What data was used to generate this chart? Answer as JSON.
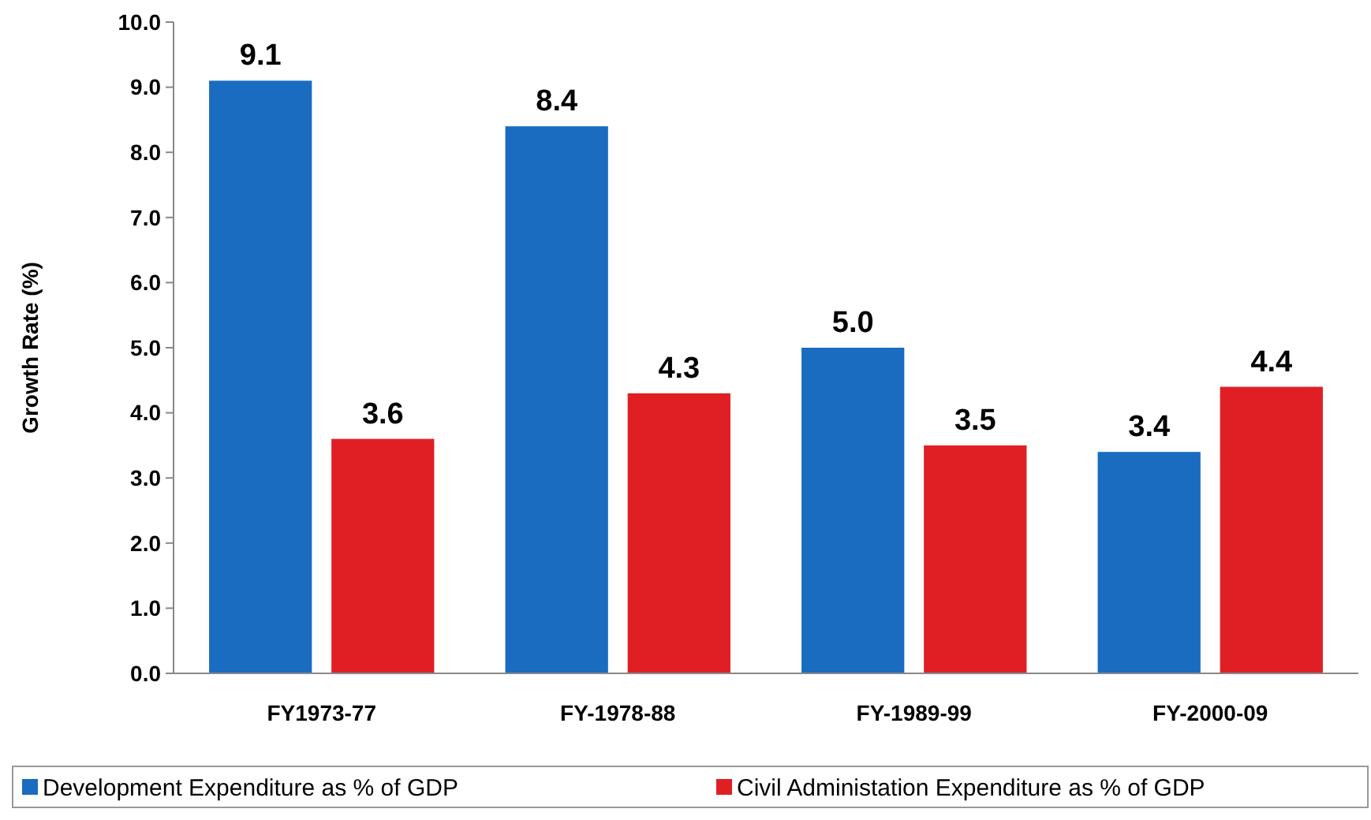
{
  "chart_data": {
    "type": "bar",
    "ylabel": "Growth Rate (%)",
    "categories": [
      "FY1973-77",
      "FY-1978-88",
      "FY-1989-99",
      "FY-2000-09"
    ],
    "series": [
      {
        "name": "Development Expenditure as % of GDP",
        "color": "#1a6cc0",
        "values": [
          9.1,
          8.4,
          5.0,
          3.4
        ],
        "value_labels": [
          "9.1",
          "8.4",
          "5.0",
          "3.4"
        ]
      },
      {
        "name": "Civil Administation Expenditure as % of GDP",
        "color": "#e01f25",
        "values": [
          3.6,
          4.3,
          3.5,
          4.4
        ],
        "value_labels": [
          "3.6",
          "4.3",
          "3.5",
          "4.4"
        ]
      }
    ],
    "ylim": [
      0,
      10
    ],
    "yticks": [
      {
        "value": 0,
        "label": "0.0"
      },
      {
        "value": 1,
        "label": "1.0"
      },
      {
        "value": 2,
        "label": "2.0"
      },
      {
        "value": 3,
        "label": "3.0"
      },
      {
        "value": 4,
        "label": "4.0"
      },
      {
        "value": 5,
        "label": "5.0"
      },
      {
        "value": 6,
        "label": "6.0"
      },
      {
        "value": 7,
        "label": "7.0"
      },
      {
        "value": 8,
        "label": "8.0"
      },
      {
        "value": 9,
        "label": "9.0"
      },
      {
        "value": 10,
        "label": "10.0"
      }
    ],
    "grid": false,
    "legend": "bottom"
  }
}
